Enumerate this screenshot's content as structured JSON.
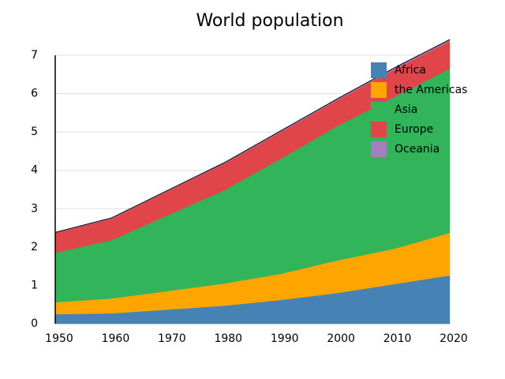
{
  "chart_data": {
    "type": "stacked_area",
    "title": "World population",
    "x": [
      1950,
      1960,
      1980,
      1990,
      2000,
      2010,
      2020
    ],
    "series": [
      {
        "name": "Africa",
        "color": "#4682b4",
        "values": [
          0.25,
          0.27,
          0.47,
          0.62,
          0.8,
          1.03,
          1.26
        ]
      },
      {
        "name": "the Americas",
        "color": "#ffa500",
        "values": [
          0.31,
          0.39,
          0.58,
          0.68,
          0.85,
          0.92,
          1.11
        ]
      },
      {
        "name": "Asia",
        "color": "#32b45a",
        "values": [
          1.29,
          1.52,
          2.43,
          3.0,
          3.5,
          3.95,
          4.28
        ]
      },
      {
        "name": "Europe",
        "color": "#e0454a",
        "values": [
          0.52,
          0.56,
          0.7,
          0.7,
          0.68,
          0.72,
          0.72
        ]
      },
      {
        "name": "Oceania",
        "color": "#a77dc2",
        "values": [
          0.01,
          0.02,
          0.02,
          0.03,
          0.03,
          0.04,
          0.04
        ]
      }
    ],
    "xlim": [
      1950,
      2020
    ],
    "xticks": [
      1950,
      1960,
      1970,
      1980,
      1990,
      2000,
      2010,
      2020
    ],
    "ylim": [
      0,
      7
    ],
    "yticks": [
      0,
      1,
      2,
      3,
      4,
      5,
      6,
      7
    ],
    "grid": true,
    "legend": "upper right"
  }
}
